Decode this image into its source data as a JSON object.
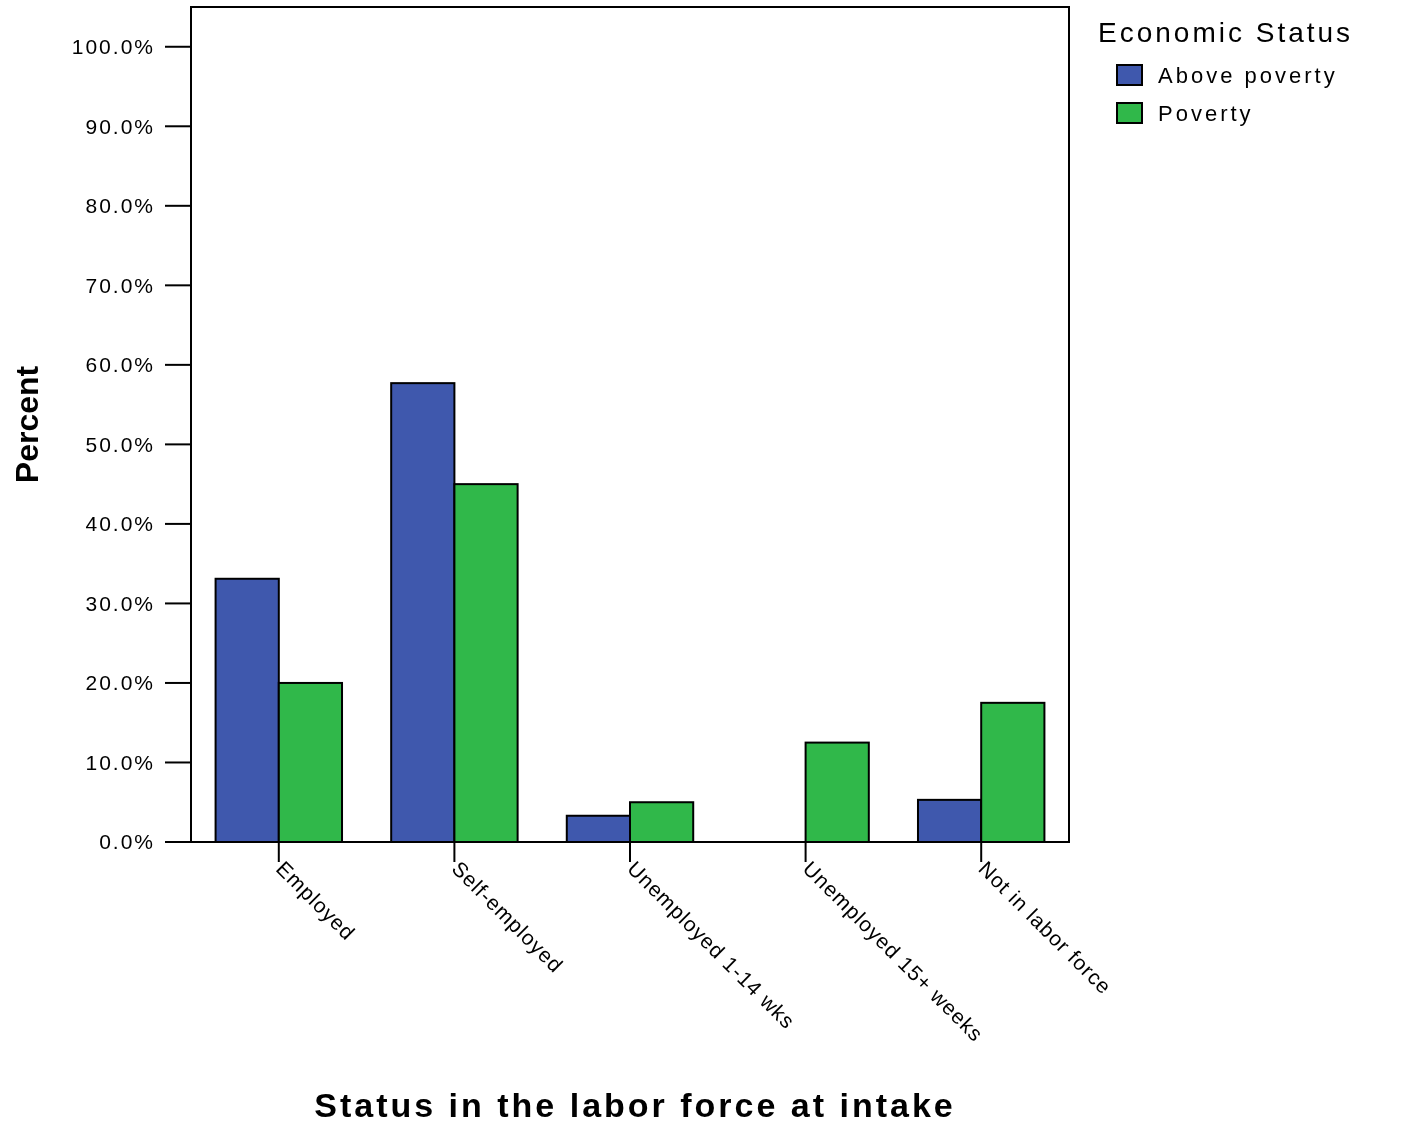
{
  "chart_data": {
    "type": "bar",
    "xlabel": "Status in the labor force at intake",
    "ylabel": "Percent",
    "legend_title": "Economic Status",
    "categories": [
      "Employed",
      "Self-employed",
      "Unemployed 1-14 wks",
      "Unemployed 15+ weeks",
      "Not in labor force"
    ],
    "series": [
      {
        "name": "Above poverty",
        "color": "#3f58ad",
        "values": [
          33.1,
          57.7,
          3.3,
          0,
          5.3
        ]
      },
      {
        "name": "Poverty",
        "color": "#30b84a",
        "values": [
          20.0,
          45.0,
          5.0,
          12.5,
          17.5
        ]
      }
    ],
    "ylim": [
      0,
      105
    ],
    "yticks": [
      {
        "value": 0,
        "label": "0.0%"
      },
      {
        "value": 10,
        "label": "10.0%"
      },
      {
        "value": 20,
        "label": "20.0%"
      },
      {
        "value": 30,
        "label": "30.0%"
      },
      {
        "value": 40,
        "label": "40.0%"
      },
      {
        "value": 50,
        "label": "50.0%"
      },
      {
        "value": 60,
        "label": "60.0%"
      },
      {
        "value": 70,
        "label": "70.0%"
      },
      {
        "value": 80,
        "label": "80.0%"
      },
      {
        "value": 90,
        "label": "90.0%"
      },
      {
        "value": 100,
        "label": "100.0%"
      }
    ],
    "grid": false,
    "legend": "top right"
  }
}
